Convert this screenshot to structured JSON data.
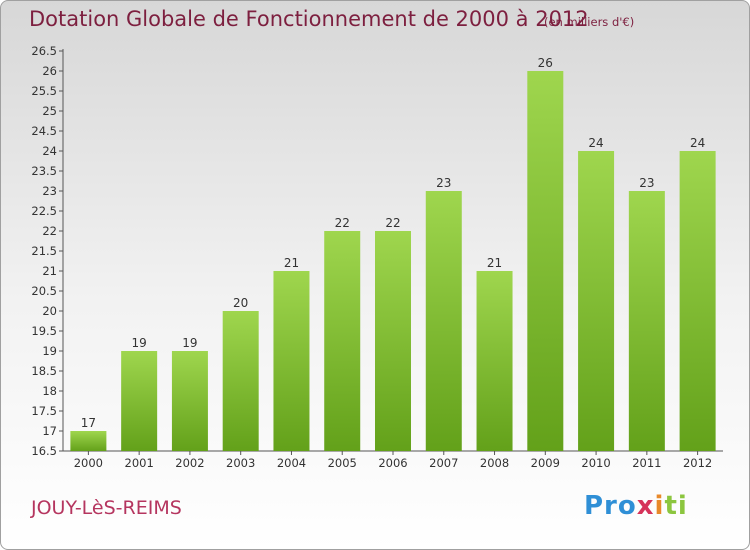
{
  "header": {
    "title": "Dotation Globale de Fonctionnement de 2000 à 2012",
    "subtitle": "(en milliers d'€)"
  },
  "footer": {
    "commune": "JOUY-LèS-REIMS",
    "logo_parts": [
      "Pro",
      "x",
      "i",
      "ti"
    ]
  },
  "colors": {
    "bar_light": "#9fd64e",
    "bar_dark": "#63a11a",
    "title": "#7d1f3f",
    "commune": "#b5355f"
  },
  "chart_data": {
    "type": "bar",
    "title": "Dotation Globale de Fonctionnement de 2000 à 2012",
    "xlabel": "",
    "ylabel": "",
    "categories": [
      "2000",
      "2001",
      "2002",
      "2003",
      "2004",
      "2005",
      "2006",
      "2007",
      "2008",
      "2009",
      "2010",
      "2011",
      "2012"
    ],
    "values": [
      17,
      19,
      19,
      20,
      21,
      22,
      22,
      23,
      21,
      26,
      24,
      23,
      24
    ],
    "data_labels": [
      "17",
      "19",
      "19",
      "20",
      "21",
      "22",
      "22",
      "23",
      "21",
      "26",
      "24",
      "23",
      "24"
    ],
    "ylim": [
      16.5,
      26.5
    ],
    "yticks": [
      "16.5",
      "17",
      "17.5",
      "18",
      "18.5",
      "19",
      "19.5",
      "20",
      "20.5",
      "21",
      "21.5",
      "22",
      "22.5",
      "23",
      "23.5",
      "24",
      "24.5",
      "25",
      "25.5",
      "26",
      "26.5"
    ],
    "grid": false,
    "legend": "none"
  }
}
